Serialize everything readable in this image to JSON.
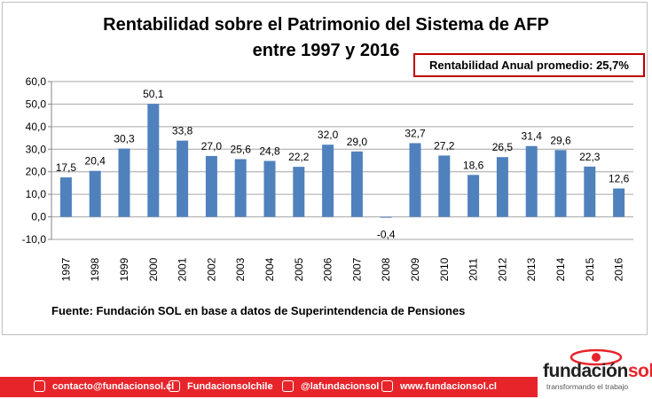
{
  "title_line1": "Rentabilidad sobre el Patrimonio del Sistema de AFP",
  "title_line2": "entre 1997 y 2016",
  "average_label": "Rentabilidad Anual promedio: 25,7%",
  "source_note": "Fuente: Fundación SOL en base a datos de Superintendencia de Pensiones",
  "footer": {
    "email": "contacto@fundacionsol.cl",
    "facebook": "Fundacionsolchile",
    "twitter": "@lafundacionsol",
    "website": "www.fundacionsol.cl"
  },
  "logo": {
    "word_a": "fundación",
    "word_b": "sol",
    "tagline": "transformando el trabajo"
  },
  "colors": {
    "bar": "#4f81bd",
    "accent": "#c00000",
    "brand_red": "#e8242b"
  },
  "chart_data": {
    "type": "bar",
    "title": "Rentabilidad sobre el Patrimonio del Sistema de AFP entre 1997 y 2016",
    "categories": [
      "1997",
      "1998",
      "1999",
      "2000",
      "2001",
      "2002",
      "2003",
      "2004",
      "2005",
      "2006",
      "2007",
      "2008",
      "2009",
      "2010",
      "2011",
      "2012",
      "2013",
      "2014",
      "2015",
      "2016"
    ],
    "values": [
      17.5,
      20.4,
      30.3,
      50.1,
      33.8,
      27.0,
      25.6,
      24.8,
      22.2,
      32.0,
      29.0,
      -0.4,
      32.7,
      27.2,
      18.6,
      26.5,
      31.4,
      29.6,
      22.3,
      12.6
    ],
    "value_labels": [
      "17,5",
      "20,4",
      "30,3",
      "50,1",
      "33,8",
      "27,0",
      "25,6",
      "24,8",
      "22,2",
      "32,0",
      "29,0",
      "-0,4",
      "32,7",
      "27,2",
      "18,6",
      "26,5",
      "31,4",
      "29,6",
      "22,3",
      "12,6"
    ],
    "ylim": [
      -10,
      60
    ],
    "yticks": [
      "-10,0",
      "0,0",
      "10,0",
      "20,0",
      "30,0",
      "40,0",
      "50,0",
      "60,0"
    ],
    "grid": true,
    "xlabel": "",
    "ylabel": ""
  }
}
